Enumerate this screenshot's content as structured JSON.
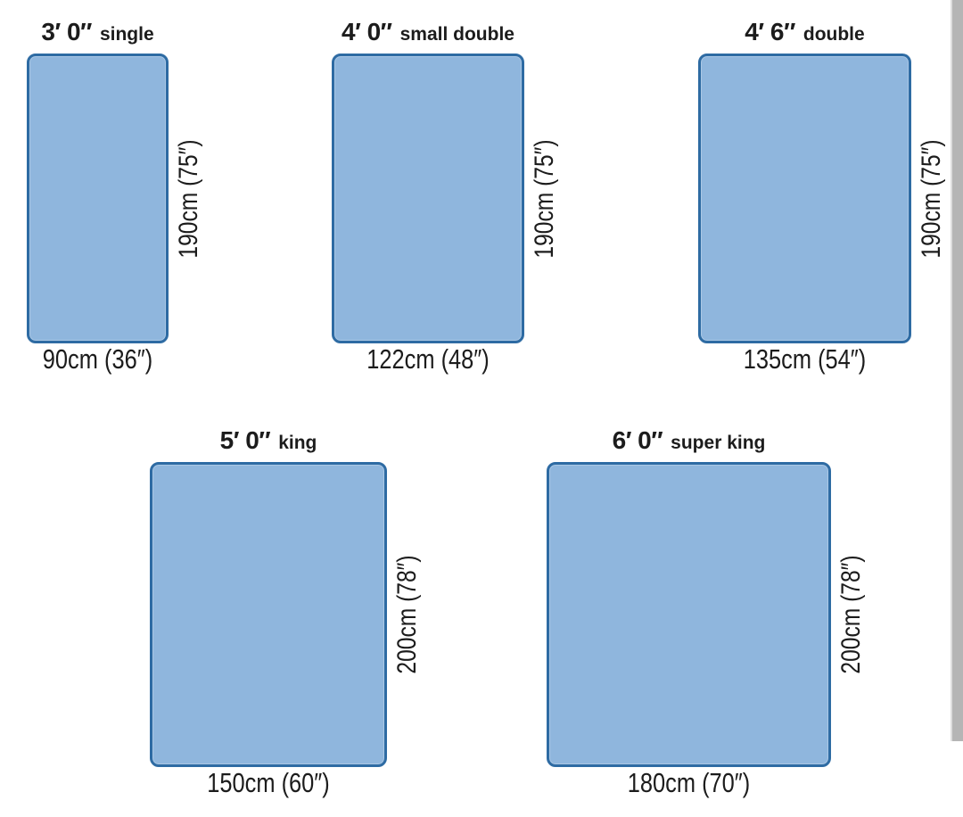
{
  "colors": {
    "mattress_fill": "#8fb6dd",
    "mattress_border": "#2e6ba3",
    "label_text": "#1c1c1c",
    "background": "#ffffff",
    "scrollbar": "#b5b5b5"
  },
  "beds": [
    {
      "name": "single",
      "size_label": "3′ 0″",
      "type_label": "single",
      "width_label": "90cm (36″)",
      "height_label": "190cm (75″)",
      "width_cm": 90,
      "height_cm": 190
    },
    {
      "name": "small double",
      "size_label": "4′ 0″",
      "type_label": "small double",
      "width_label": "122cm (48″)",
      "height_label": "190cm (75″)",
      "width_cm": 122,
      "height_cm": 190
    },
    {
      "name": "double",
      "size_label": "4′ 6″",
      "type_label": "double",
      "width_label": "135cm (54″)",
      "height_label": "190cm (75″)",
      "width_cm": 135,
      "height_cm": 190
    },
    {
      "name": "king",
      "size_label": "5′ 0″",
      "type_label": "king",
      "width_label": "150cm (60″)",
      "height_label": "200cm (78″)",
      "width_cm": 150,
      "height_cm": 200
    },
    {
      "name": "super king",
      "size_label": "6′ 0″",
      "type_label": "super king",
      "width_label": "180cm (70″)",
      "height_label": "200cm (78″)",
      "width_cm": 180,
      "height_cm": 200
    }
  ]
}
